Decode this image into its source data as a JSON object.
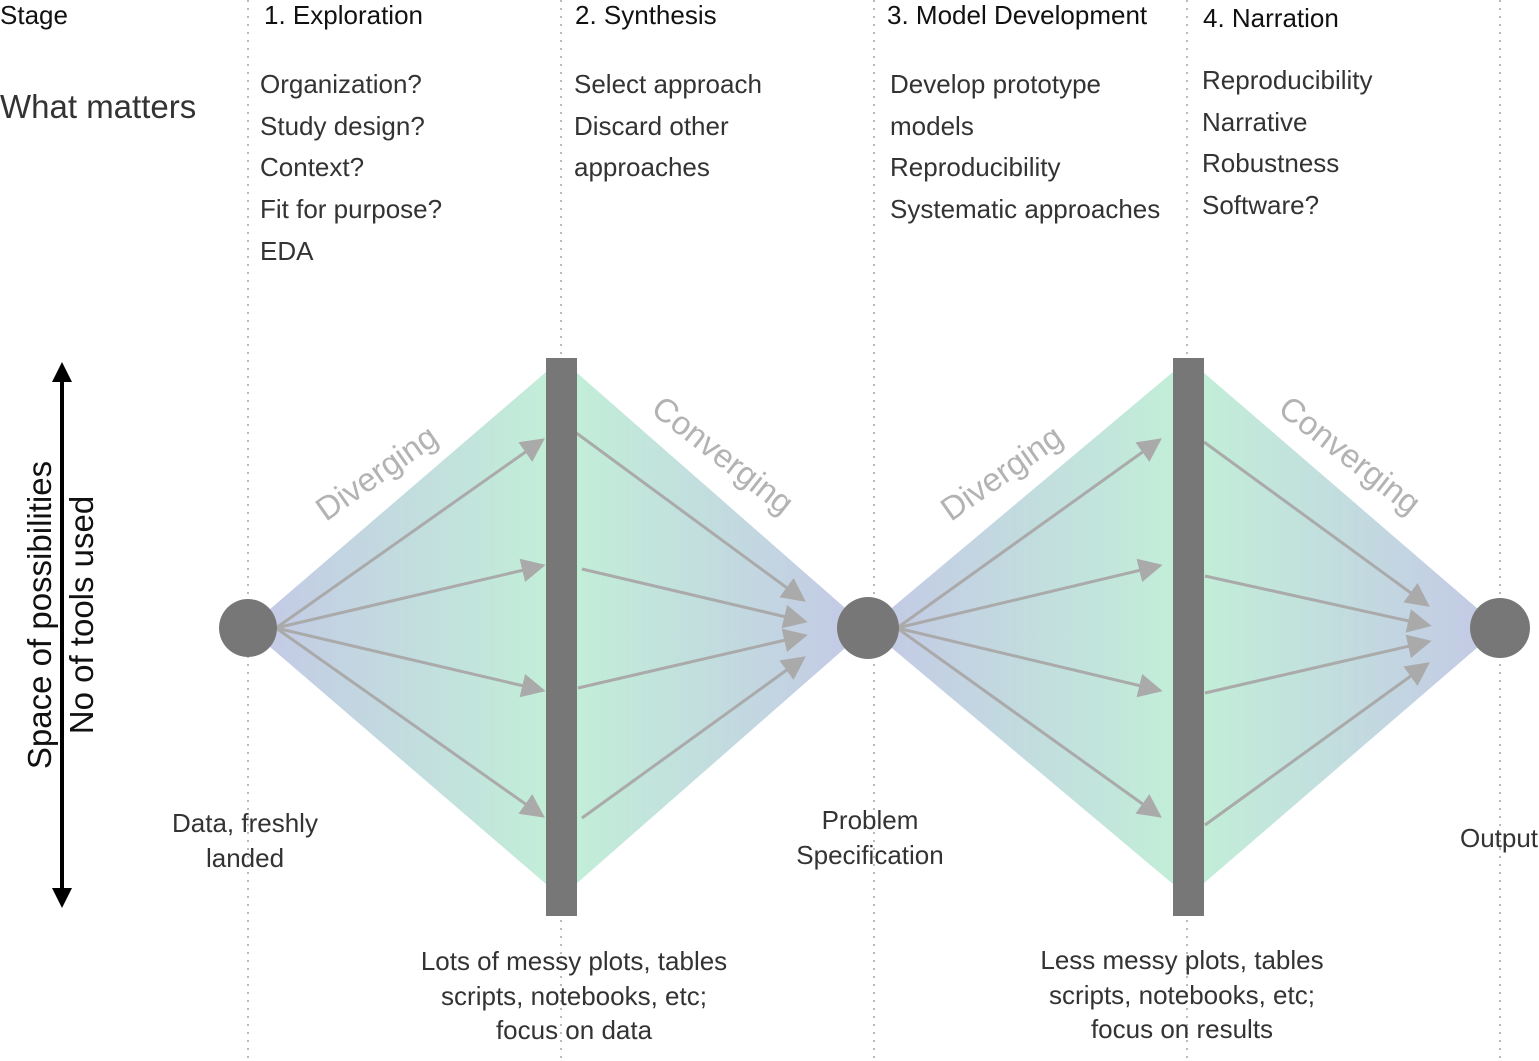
{
  "header": {
    "stage_label": "Stage",
    "what_matters_label": "What matters"
  },
  "stages": [
    {
      "title": "1. Exploration",
      "items": [
        "Organization?",
        "Study design?",
        "Context?",
        "Fit for purpose?",
        "EDA"
      ]
    },
    {
      "title": "2. Synthesis",
      "items": [
        "Select approach",
        "Discard other",
        "approaches"
      ]
    },
    {
      "title": "3. Model Development",
      "items": [
        "Develop prototype",
        "models",
        "Reproducibility",
        "Systematic approaches"
      ]
    },
    {
      "title": "4. Narration",
      "items": [
        "Reproducibility",
        "Narrative",
        "Robustness",
        "Software?"
      ]
    }
  ],
  "axis": {
    "line1": "Space of possibilities",
    "line2": "No of tools used"
  },
  "diamond_labels": {
    "diverging": "Diverging",
    "converging": "Converging"
  },
  "nodes": {
    "start": [
      "Data, freshly",
      "landed"
    ],
    "middle": [
      "Problem",
      "Specification"
    ],
    "end": [
      "Output"
    ]
  },
  "bottom_captions": {
    "first": [
      "Lots of messy plots, tables",
      "scripts, notebooks, etc;",
      "focus on data"
    ],
    "second": [
      "Less messy plots, tables",
      "scripts, notebooks, etc;",
      "focus on results"
    ]
  },
  "colors": {
    "gradient_outer": "#c3c8e6",
    "gradient_inner": "#c2eed8",
    "bar": "#777777",
    "node": "#777777",
    "arrow": "#aaaaaa",
    "diamond_text": "#b3b3b3",
    "gridline": "#bbbbbb"
  }
}
